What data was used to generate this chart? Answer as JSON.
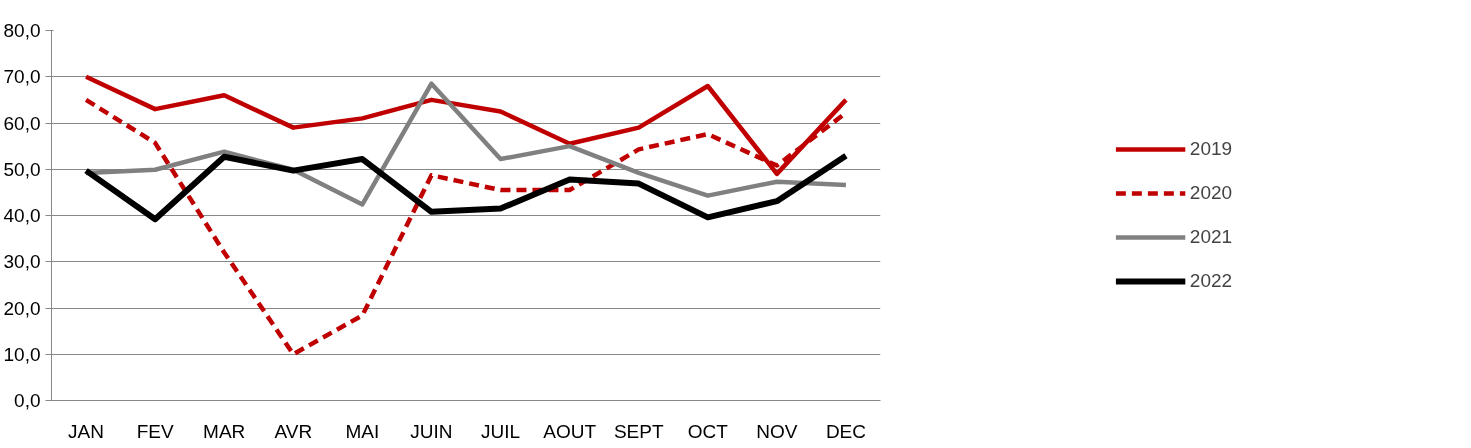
{
  "chart_data": {
    "type": "line",
    "categories": [
      "JAN",
      "FEV",
      "MAR",
      "AVR",
      "MAI",
      "JUIN",
      "JUIL",
      "AOUT",
      "SEPT",
      "OCT",
      "NOV",
      "DEC"
    ],
    "series": [
      {
        "name": "2019",
        "color": "#c00000",
        "line_style": "solid",
        "values": [
          70,
          63,
          66,
          59,
          61,
          65,
          62.5,
          55.5,
          59,
          68,
          49,
          65
        ]
      },
      {
        "name": "2020",
        "color": "#c00000",
        "line_style": "dashed",
        "values": [
          65,
          55.7,
          32,
          10,
          18.4,
          48.7,
          45.5,
          45.5,
          54.3,
          57.6,
          50.8,
          62.2
        ]
      },
      {
        "name": "2021",
        "color": "#808080",
        "line_style": "solid",
        "values": [
          49.2,
          49.9,
          53.8,
          49.9,
          42.4,
          68.5,
          52.2,
          55,
          49.2,
          44.3,
          47.3,
          46.6
        ]
      },
      {
        "name": "2022",
        "color": "#000000",
        "line_style": "solid",
        "values": [
          49.7,
          39.2,
          52.7,
          49.7,
          52.2,
          40.8,
          41.5,
          47.8,
          46.9,
          39.6,
          43.1,
          52.9
        ]
      }
    ],
    "ylim": [
      0,
      80
    ],
    "yticks": [
      {
        "value": 0,
        "label": "0,0"
      },
      {
        "value": 10,
        "label": "10,0"
      },
      {
        "value": 20,
        "label": "20,0"
      },
      {
        "value": 30,
        "label": "30,0"
      },
      {
        "value": 40,
        "label": "40,0"
      },
      {
        "value": 50,
        "label": "50,0"
      },
      {
        "value": 60,
        "label": "60,0"
      },
      {
        "value": 70,
        "label": "70,0"
      },
      {
        "value": 80,
        "label": "80,0"
      }
    ],
    "grid": "y",
    "legend": "right",
    "marker": "none"
  }
}
